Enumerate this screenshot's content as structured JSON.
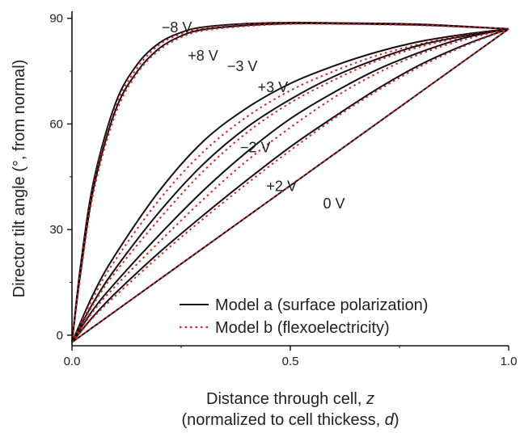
{
  "chart_data": {
    "type": "line",
    "xlabel_line1": "Distance through cell, ",
    "xlabel_var": "z",
    "xlabel_line2_pre": "(normalized to cell thickess, ",
    "xlabel_line2_var": "d",
    "xlabel_line2_post": ")",
    "ylabel": "Director tilt angle (°, from normal)",
    "xlim": [
      0,
      1.0
    ],
    "ylim": [
      -3,
      92
    ],
    "xticks": [
      0.0,
      0.5,
      1.0
    ],
    "xtick_labels": [
      "0.0",
      "0.5",
      "1.0"
    ],
    "yticks": [
      0,
      30,
      60,
      90
    ],
    "ytick_labels": [
      "0",
      "30",
      "60",
      "90"
    ],
    "grid": false,
    "legend_position": "bottom-right",
    "legend": [
      {
        "label": "Model a (surface polarization)",
        "style": "solid",
        "color": "#111111"
      },
      {
        "label": "Model b (flexoelectricity)",
        "style": "dotted",
        "color": "#e0202a"
      }
    ],
    "series": [
      {
        "name": "−8 V",
        "label_at": [
          0.24,
          86
        ],
        "model_a": {
          "x": [
            0,
            0.02,
            0.05,
            0.1,
            0.15,
            0.2,
            0.25,
            0.3,
            0.4,
            0.5,
            0.6,
            0.8,
            1.0
          ],
          "y": [
            -2,
            20,
            44,
            66,
            77,
            83,
            86,
            87.5,
            88.5,
            88.8,
            88.7,
            88.3,
            87
          ]
        },
        "model_b": {
          "x": [
            0,
            0.02,
            0.05,
            0.1,
            0.15,
            0.2,
            0.25,
            0.3,
            0.4,
            0.5,
            0.6,
            0.8,
            1.0
          ],
          "y": [
            -2,
            19,
            43,
            65,
            76,
            82.5,
            85.6,
            87.2,
            88.3,
            88.7,
            88.6,
            88.2,
            87
          ]
        }
      },
      {
        "name": "+8 V",
        "label_at": [
          0.3,
          78
        ],
        "model_a": {
          "x": [
            0,
            0.02,
            0.05,
            0.1,
            0.15,
            0.2,
            0.25,
            0.3,
            0.4,
            0.5,
            0.6,
            0.8,
            1.0
          ],
          "y": [
            -2,
            18,
            42,
            64,
            75,
            81.5,
            85,
            86.8,
            88,
            88.5,
            88.5,
            88.1,
            87
          ]
        },
        "model_b": {
          "x": [
            0,
            0.02,
            0.05,
            0.1,
            0.15,
            0.2,
            0.25,
            0.3,
            0.4,
            0.5,
            0.6,
            0.8,
            1.0
          ],
          "y": [
            -2,
            17.5,
            41,
            63,
            74.5,
            81,
            84.6,
            86.5,
            87.8,
            88.4,
            88.4,
            88,
            87
          ]
        }
      },
      {
        "name": "−3 V",
        "label_at": [
          0.39,
          75
        ],
        "model_a": {
          "x": [
            0,
            0.05,
            0.1,
            0.2,
            0.3,
            0.4,
            0.5,
            0.6,
            0.7,
            0.8,
            0.9,
            1.0
          ],
          "y": [
            -2,
            12,
            23,
            41,
            55,
            64.5,
            71.5,
            76.5,
            80.5,
            83.5,
            85.5,
            87
          ]
        },
        "model_b": {
          "x": [
            0,
            0.05,
            0.1,
            0.2,
            0.3,
            0.4,
            0.5,
            0.6,
            0.7,
            0.8,
            0.9,
            1.0
          ],
          "y": [
            -2,
            11,
            21.5,
            38.5,
            52,
            62,
            69.5,
            75,
            79.5,
            82.8,
            85.2,
            87
          ]
        }
      },
      {
        "name": "+3 V",
        "label_at": [
          0.46,
          69
        ],
        "model_a": {
          "x": [
            0,
            0.05,
            0.1,
            0.2,
            0.3,
            0.4,
            0.5,
            0.6,
            0.7,
            0.8,
            0.9,
            1.0
          ],
          "y": [
            -2,
            9.5,
            19,
            35,
            48.5,
            59,
            67,
            73.5,
            78.5,
            82.5,
            85,
            87
          ]
        },
        "model_b": {
          "x": [
            0,
            0.05,
            0.1,
            0.2,
            0.3,
            0.4,
            0.5,
            0.6,
            0.7,
            0.8,
            0.9,
            1.0
          ],
          "y": [
            -2,
            9,
            18,
            33,
            46.5,
            57.5,
            66,
            72.5,
            78,
            82,
            84.8,
            87
          ]
        }
      },
      {
        "name": "−2 V",
        "label_at": [
          0.42,
          52
        ],
        "model_a": {
          "x": [
            0,
            0.05,
            0.1,
            0.2,
            0.3,
            0.4,
            0.5,
            0.6,
            0.7,
            0.8,
            0.9,
            1.0
          ],
          "y": [
            -2,
            7.5,
            15,
            28.5,
            41,
            52,
            61.5,
            69,
            75.5,
            80.5,
            84.5,
            87
          ]
        },
        "model_b": {
          "x": [
            0,
            0.05,
            0.1,
            0.2,
            0.3,
            0.4,
            0.5,
            0.6,
            0.7,
            0.8,
            0.9,
            1.0
          ],
          "y": [
            -2,
            7,
            14,
            26.5,
            38.5,
            49.5,
            59,
            67.5,
            74.5,
            80,
            84,
            87
          ]
        }
      },
      {
        "name": "+2 V",
        "label_at": [
          0.48,
          41
        ],
        "model_a": {
          "x": [
            0,
            0.05,
            0.1,
            0.2,
            0.3,
            0.4,
            0.5,
            0.6,
            0.7,
            0.8,
            0.9,
            1.0
          ],
          "y": [
            -2,
            5.5,
            12,
            23.5,
            34,
            44,
            53.5,
            62,
            70,
            77,
            82.5,
            87
          ]
        },
        "model_b": {
          "x": [
            0,
            0.05,
            0.1,
            0.2,
            0.3,
            0.4,
            0.5,
            0.6,
            0.7,
            0.8,
            0.9,
            1.0
          ],
          "y": [
            -2,
            5.2,
            11.2,
            22.5,
            33,
            43,
            52.5,
            61.5,
            69.5,
            76.5,
            82.2,
            87
          ]
        }
      },
      {
        "name": "0 V",
        "label_at": [
          0.6,
          36
        ],
        "model_a": {
          "x": [
            0,
            1.0
          ],
          "y": [
            -2,
            87
          ]
        },
        "model_b": {
          "x": [
            0,
            1.0
          ],
          "y": [
            -2,
            87
          ]
        }
      }
    ]
  }
}
